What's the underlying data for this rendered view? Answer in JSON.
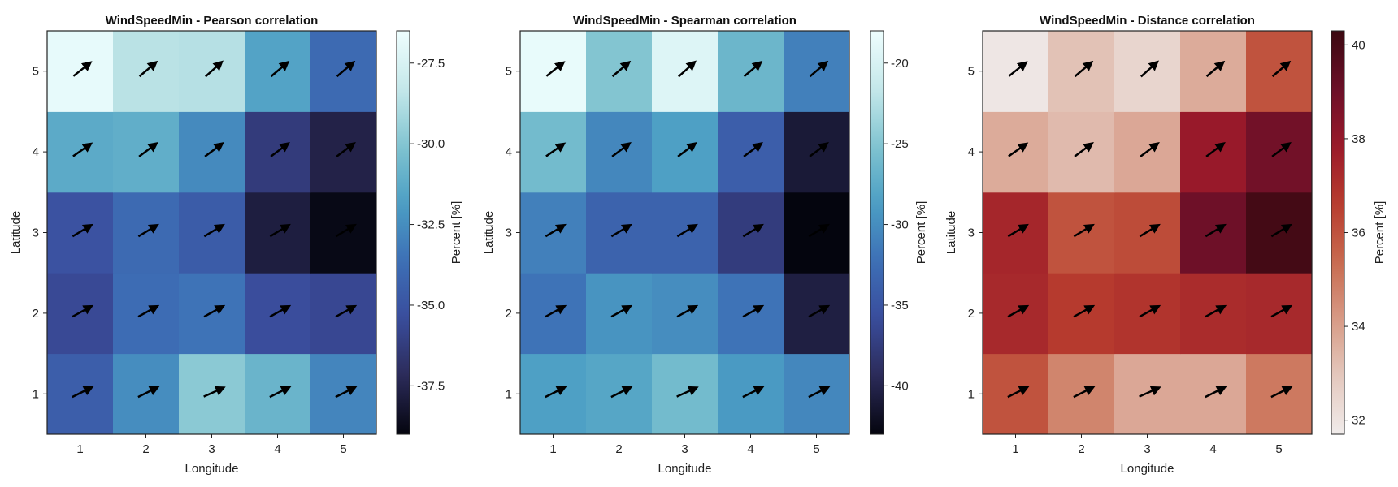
{
  "chart_data": [
    {
      "type": "heatmap",
      "title": "WindSpeedMin - Pearson correlation",
      "xlabel": "Longitude",
      "ylabel": "Latitude",
      "x": [
        1,
        2,
        3,
        4,
        5
      ],
      "y": [
        1,
        2,
        3,
        4,
        5
      ],
      "z": [
        [
          -34.5,
          -32.5,
          -29.8,
          -30.8,
          -32.8
        ],
        [
          -35.6,
          -33.8,
          -33.5,
          -35.4,
          -35.7
        ],
        [
          -35.1,
          -33.9,
          -34.6,
          -37.8,
          -38.8
        ],
        [
          -31.3,
          -31.1,
          -32.6,
          -36.3,
          -37.6
        ],
        [
          -26.8,
          -28.6,
          -28.7,
          -31.6,
          -33.9
        ]
      ],
      "colorbar": {
        "label": "Percent [%]",
        "colormap": "ice",
        "range": [
          -39.0,
          -26.5
        ],
        "ticks": [
          -27.5,
          -30.0,
          -32.5,
          -35.0,
          -37.5
        ],
        "tick_labels": [
          "-27.5",
          "-30.0",
          "-32.5",
          "-35.0",
          "-37.5"
        ]
      },
      "arrows": [
        [
          [
            1,
            0.5
          ],
          [
            1,
            0.5
          ],
          [
            1,
            0.45
          ],
          [
            1,
            0.5
          ],
          [
            1,
            0.5
          ]
        ],
        [
          [
            1,
            0.55
          ],
          [
            1,
            0.55
          ],
          [
            1,
            0.55
          ],
          [
            1,
            0.55
          ],
          [
            1,
            0.55
          ]
        ],
        [
          [
            1,
            0.6
          ],
          [
            1,
            0.6
          ],
          [
            1,
            0.6
          ],
          [
            1,
            0.6
          ],
          [
            1,
            0.6
          ]
        ],
        [
          [
            1,
            0.7
          ],
          [
            1,
            0.75
          ],
          [
            1,
            0.75
          ],
          [
            1,
            0.75
          ],
          [
            1,
            0.75
          ]
        ],
        [
          [
            1,
            0.8
          ],
          [
            1,
            0.85
          ],
          [
            1,
            0.9
          ],
          [
            1,
            0.85
          ],
          [
            1,
            0.85
          ]
        ]
      ],
      "grid": false
    },
    {
      "type": "heatmap",
      "title": "WindSpeedMin - Spearman correlation",
      "xlabel": "Longitude",
      "ylabel": "Latitude",
      "x": [
        1,
        2,
        3,
        4,
        5
      ],
      "y": [
        1,
        2,
        3,
        4,
        5
      ],
      "z": [
        [
          -28.5,
          -28.0,
          -26.0,
          -29.0,
          -30.5
        ],
        [
          -32.0,
          -29.5,
          -30.0,
          -32.0,
          -40.5
        ],
        [
          -31.0,
          -33.5,
          -33.5,
          -37.5,
          -43.0
        ],
        [
          -26.0,
          -30.5,
          -28.5,
          -34.0,
          -41.0
        ],
        [
          -18.5,
          -25.0,
          -19.5,
          -26.5,
          -31.0
        ]
      ],
      "colorbar": {
        "label": "Percent [%]",
        "colormap": "ice",
        "range": [
          -43.0,
          -18.0
        ],
        "ticks": [
          -20,
          -25,
          -30,
          -35,
          -40
        ],
        "tick_labels": [
          "-20",
          "-25",
          "-30",
          "-35",
          "-40"
        ]
      },
      "arrows": [
        [
          [
            1,
            0.5
          ],
          [
            1,
            0.5
          ],
          [
            1,
            0.45
          ],
          [
            1,
            0.5
          ],
          [
            1,
            0.5
          ]
        ],
        [
          [
            1,
            0.55
          ],
          [
            1,
            0.55
          ],
          [
            1,
            0.55
          ],
          [
            1,
            0.55
          ],
          [
            1,
            0.55
          ]
        ],
        [
          [
            1,
            0.6
          ],
          [
            1,
            0.6
          ],
          [
            1,
            0.6
          ],
          [
            1,
            0.6
          ],
          [
            1,
            0.6
          ]
        ],
        [
          [
            1,
            0.7
          ],
          [
            1,
            0.75
          ],
          [
            1,
            0.75
          ],
          [
            1,
            0.75
          ],
          [
            1,
            0.75
          ]
        ],
        [
          [
            1,
            0.8
          ],
          [
            1,
            0.85
          ],
          [
            1,
            0.9
          ],
          [
            1,
            0.85
          ],
          [
            1,
            0.85
          ]
        ]
      ],
      "grid": false
    },
    {
      "type": "heatmap",
      "title": "WindSpeedMin - Distance correlation",
      "xlabel": "Longitude",
      "ylabel": "Latitude",
      "x": [
        1,
        2,
        3,
        4,
        5
      ],
      "y": [
        1,
        2,
        3,
        4,
        5
      ],
      "z": [
        [
          36.0,
          34.7,
          33.8,
          33.8,
          35.0
        ],
        [
          37.3,
          36.7,
          36.9,
          37.2,
          37.3
        ],
        [
          37.4,
          36.0,
          36.2,
          39.0,
          40.1
        ],
        [
          33.7,
          33.3,
          33.8,
          37.9,
          38.9
        ],
        [
          31.9,
          33.1,
          32.5,
          33.7,
          36.0
        ]
      ],
      "colorbar": {
        "label": "Percent [%]",
        "colormap": "amp",
        "range": [
          31.7,
          40.3
        ],
        "ticks": [
          32,
          34,
          36,
          38,
          40
        ],
        "tick_labels": [
          "32",
          "34",
          "36",
          "38",
          "40"
        ]
      },
      "arrows": [
        [
          [
            1,
            0.5
          ],
          [
            1,
            0.5
          ],
          [
            1,
            0.45
          ],
          [
            1,
            0.5
          ],
          [
            1,
            0.5
          ]
        ],
        [
          [
            1,
            0.55
          ],
          [
            1,
            0.55
          ],
          [
            1,
            0.55
          ],
          [
            1,
            0.55
          ],
          [
            1,
            0.55
          ]
        ],
        [
          [
            1,
            0.6
          ],
          [
            1,
            0.6
          ],
          [
            1,
            0.6
          ],
          [
            1,
            0.6
          ],
          [
            1,
            0.6
          ]
        ],
        [
          [
            1,
            0.7
          ],
          [
            1,
            0.75
          ],
          [
            1,
            0.75
          ],
          [
            1,
            0.75
          ],
          [
            1,
            0.75
          ]
        ],
        [
          [
            1,
            0.8
          ],
          [
            1,
            0.85
          ],
          [
            1,
            0.9
          ],
          [
            1,
            0.85
          ],
          [
            1,
            0.85
          ]
        ]
      ],
      "grid": false
    }
  ],
  "colormaps": {
    "ice": [
      "#eefefe",
      "#c6e8ea",
      "#80c4d0",
      "#4b9ec4",
      "#3d6fb6",
      "#3a4c9c",
      "#2b2a58",
      "#04050e"
    ],
    "amp": [
      "#f0eceb",
      "#e4c8be",
      "#d79a85",
      "#c86a4f",
      "#b83c2e",
      "#9a1a2a",
      "#6b0f28",
      "#3c0911"
    ]
  },
  "arrow_color": "#000000"
}
